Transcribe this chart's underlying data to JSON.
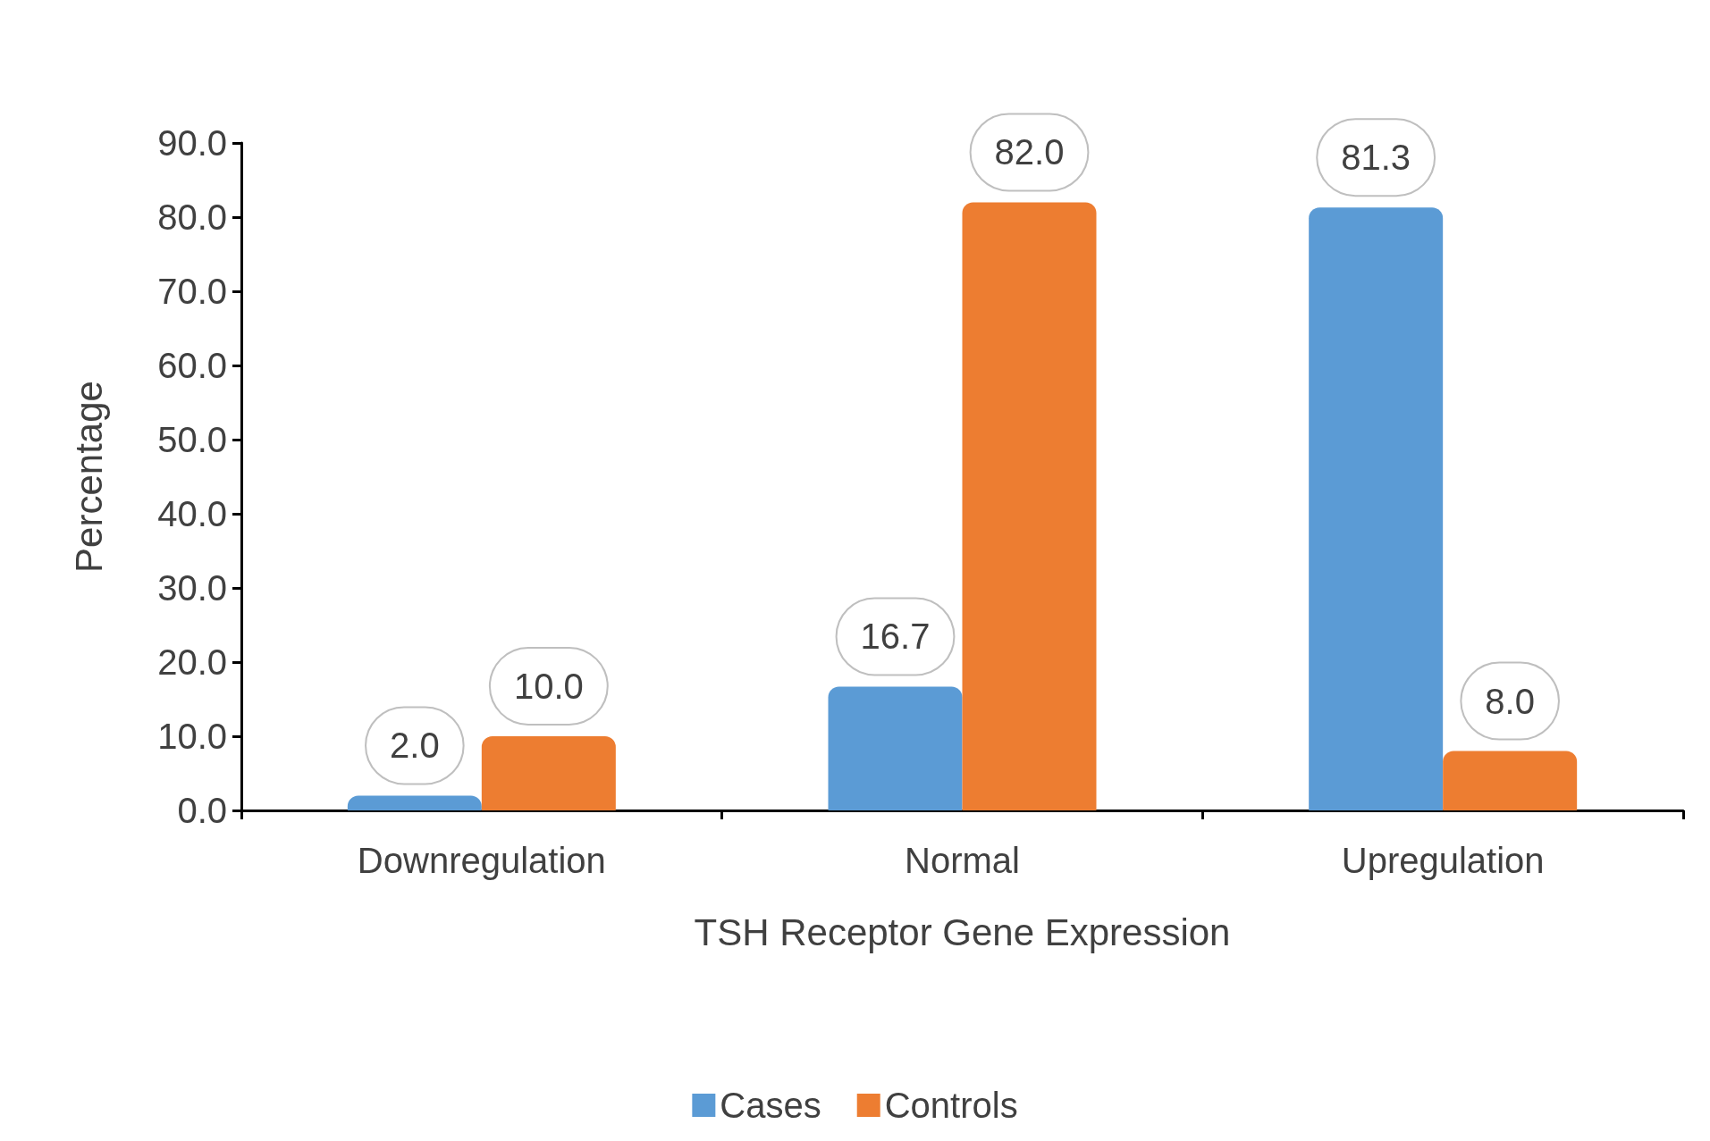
{
  "chart_data": {
    "type": "bar",
    "xlabel": "TSH Receptor Gene Expression",
    "ylabel": "Percentage",
    "categories": [
      "Downregulation",
      "Normal",
      "Upregulation"
    ],
    "series": [
      {
        "name": "Cases",
        "color": "#5b9bd5",
        "values": [
          2.0,
          16.7,
          81.3
        ],
        "value_labels": [
          "2.0",
          "16.7",
          "81.3"
        ]
      },
      {
        "name": "Controls",
        "color": "#ed7d31",
        "values": [
          10.0,
          82.0,
          8.0
        ],
        "value_labels": [
          "10.0",
          "82.0",
          "8.0"
        ]
      }
    ],
    "ylim": [
      0,
      90
    ],
    "yticks": [
      {
        "value": 0,
        "label": "0.0"
      },
      {
        "value": 10,
        "label": "10.0"
      },
      {
        "value": 20,
        "label": "20.0"
      },
      {
        "value": 30,
        "label": "30.0"
      },
      {
        "value": 40,
        "label": "40.0"
      },
      {
        "value": 50,
        "label": "50.0"
      },
      {
        "value": 60,
        "label": "60.0"
      },
      {
        "value": 70,
        "label": "70.0"
      },
      {
        "value": 80,
        "label": "80.0"
      },
      {
        "value": 90,
        "label": "90.0"
      }
    ],
    "grid": false,
    "legend": "bottom"
  }
}
